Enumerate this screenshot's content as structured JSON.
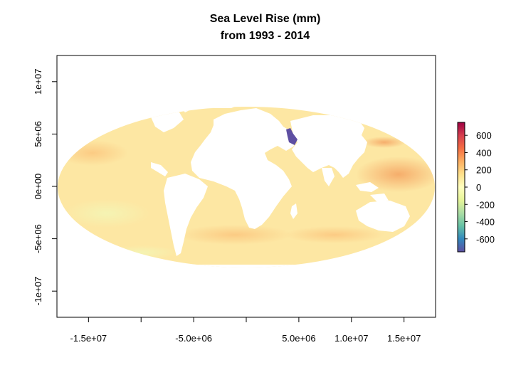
{
  "chart_data": {
    "type": "heatmap",
    "title": "Sea Level Rise (mm)",
    "subtitle": "from 1993 - 2014",
    "xlabel": "",
    "ylabel": "",
    "x_ticks": [
      {
        "value": -15000000,
        "label": "-1.5e+07"
      },
      {
        "value": -10000000,
        "label": ""
      },
      {
        "value": -5000000,
        "label": "-5.0e+06"
      },
      {
        "value": 0,
        "label": ""
      },
      {
        "value": 5000000,
        "label": "5.0e+06"
      },
      {
        "value": 10000000,
        "label": "1.0e+07"
      },
      {
        "value": 15000000,
        "label": "1.5e+07"
      }
    ],
    "y_ticks": [
      {
        "value": 10000000,
        "label": "1e+07"
      },
      {
        "value": 5000000,
        "label": "5e+06"
      },
      {
        "value": 0,
        "label": "0e+00"
      },
      {
        "value": -5000000,
        "label": "-5e+06"
      },
      {
        "value": -10000000,
        "label": "-1e+07"
      }
    ],
    "xlim": [
      -18000000,
      18000000
    ],
    "ylim": [
      -12500000,
      12500000
    ],
    "projection": "Mollweide",
    "legend": {
      "position": "right",
      "range": [
        -750,
        750
      ],
      "ticks": [
        {
          "value": 600,
          "label": "600"
        },
        {
          "value": 400,
          "label": "400"
        },
        {
          "value": 200,
          "label": "200"
        },
        {
          "value": 0,
          "label": "0"
        },
        {
          "value": -200,
          "label": "-200"
        },
        {
          "value": -400,
          "label": "-400"
        },
        {
          "value": -600,
          "label": "-600"
        }
      ],
      "colors": [
        "#5e4fa2",
        "#3288bd",
        "#66c2a5",
        "#abdda4",
        "#e6f598",
        "#ffffbf",
        "#fee08b",
        "#fdae61",
        "#f46d43",
        "#d53e4f",
        "#9e0142"
      ]
    },
    "ocean_color": "#fde7a3",
    "land_color": "#ffffff"
  }
}
